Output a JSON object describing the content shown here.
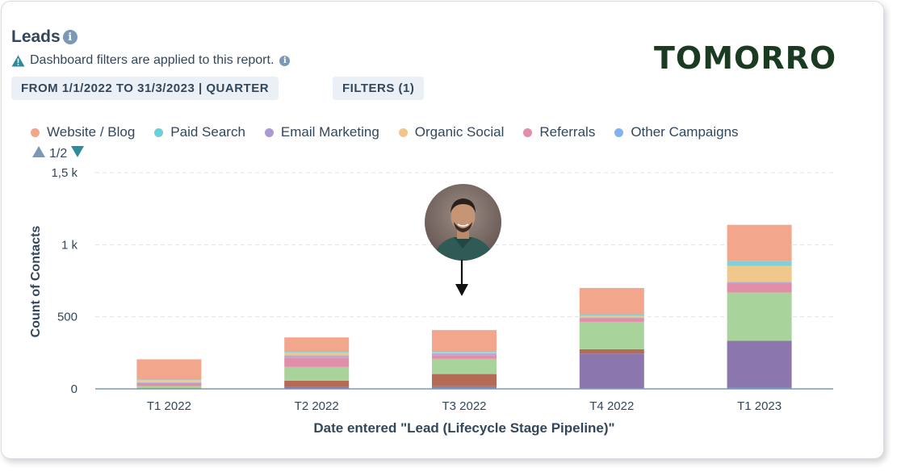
{
  "header": {
    "title": "Leads",
    "notice": "Dashboard filters are applied to this report.",
    "date_filter": "FROM 1/1/2022 TO 31/3/2023 | QUARTER",
    "filters_button": "FILTERS (1)",
    "brand": "TOMORRO"
  },
  "legend_pager": {
    "label": "1/2"
  },
  "icons": {
    "title_info": "info-icon",
    "notice_warning": "warning-icon",
    "notice_info": "info-icon",
    "pager_prev": "triangle-up-icon",
    "pager_next": "triangle-down-icon",
    "avatar": "person-avatar",
    "pointer": "arrow-down-icon"
  },
  "colors": {
    "accent": "#00a4bd",
    "axis": "#7c98b6",
    "brand": "#1b3a22"
  },
  "chart_data": {
    "type": "bar",
    "stacked": true,
    "title": "",
    "xlabel": "Date entered \"Lead (Lifecycle Stage Pipeline)\"",
    "ylabel": "Count of Contacts",
    "ylim": [
      0,
      1500
    ],
    "yticks": [
      {
        "value": 0,
        "label": "0"
      },
      {
        "value": 500,
        "label": "500"
      },
      {
        "value": 1000,
        "label": "1 k"
      },
      {
        "value": 1500,
        "label": "1,5 k"
      }
    ],
    "grid": true,
    "legend_position": "top-left",
    "categories": [
      "T1 2022",
      "T2 2022",
      "T3 2022",
      "T4 2022",
      "T1 2023"
    ],
    "series": [
      {
        "name": "",
        "color": "#5b9bd5",
        "values": [
          2,
          2,
          8,
          5,
          8
        ]
      },
      {
        "name": "",
        "color": "#8b77ad",
        "values": [
          0,
          10,
          10,
          240,
          325
        ]
      },
      {
        "name": "",
        "color": "#b46a55",
        "values": [
          3,
          45,
          85,
          30,
          0
        ]
      },
      {
        "name": "",
        "color": "#a8d49c",
        "values": [
          15,
          95,
          105,
          190,
          335
        ]
      },
      {
        "name": "Referrals",
        "color": "#e08fa6",
        "values": [
          20,
          65,
          25,
          25,
          65
        ]
      },
      {
        "name": "",
        "color": "#b7a9d9",
        "values": [
          5,
          15,
          15,
          5,
          10
        ]
      },
      {
        "name": "Organic Social",
        "color": "#f0c88c",
        "values": [
          15,
          20,
          5,
          10,
          110
        ]
      },
      {
        "name": "Paid Search",
        "color": "#7fd1d8",
        "values": [
          5,
          5,
          10,
          10,
          35
        ]
      },
      {
        "name": "Website / Blog",
        "color": "#f2a68c",
        "values": [
          140,
          100,
          145,
          185,
          250
        ]
      }
    ],
    "legend": [
      {
        "name": "Website / Blog",
        "color": "#f2a68c"
      },
      {
        "name": "Paid Search",
        "color": "#6bd0d8"
      },
      {
        "name": "Email Marketing",
        "color": "#a99ad6"
      },
      {
        "name": "Organic Social",
        "color": "#f2c58e"
      },
      {
        "name": "Referrals",
        "color": "#e08fa6"
      },
      {
        "name": "Other Campaigns",
        "color": "#7fb2ef"
      }
    ]
  }
}
